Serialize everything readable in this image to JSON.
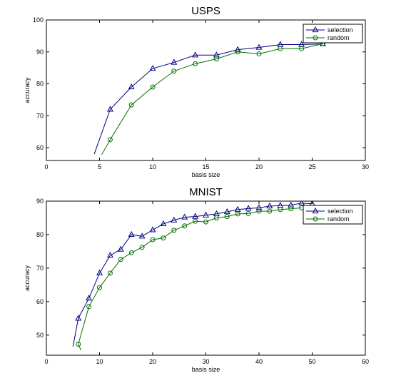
{
  "chart_data": [
    {
      "type": "line",
      "title": "USPS",
      "xlabel": "basis size",
      "ylabel": "accuracy",
      "xlim": [
        0,
        30
      ],
      "ylim": [
        56,
        100
      ],
      "xticks": [
        0,
        5,
        10,
        15,
        20,
        25,
        30
      ],
      "yticks": [
        60,
        70,
        80,
        90,
        100
      ],
      "grid": false,
      "legend_position": "top-right",
      "series": [
        {
          "name": "selection",
          "color": "#000080",
          "marker": "triangle",
          "line_start": {
            "x": 4.5,
            "y": 58
          },
          "x": [
            6,
            8,
            10,
            12,
            14,
            16,
            18,
            20,
            22,
            24,
            26
          ],
          "y": [
            72,
            79,
            84.8,
            86.7,
            89,
            89,
            90.7,
            91.4,
            92.3,
            92.3,
            92.5
          ]
        },
        {
          "name": "random",
          "color": "#007000",
          "marker": "circle",
          "line_start": {
            "x": 5.2,
            "y": 57.8
          },
          "x": [
            6,
            8,
            10,
            12,
            14,
            16,
            18,
            20,
            22,
            24,
            26
          ],
          "y": [
            62.5,
            73.4,
            79,
            84,
            86.3,
            87.8,
            90,
            89.4,
            91,
            91,
            92.6
          ]
        }
      ]
    },
    {
      "type": "line",
      "title": "MNIST",
      "xlabel": "basis size",
      "ylabel": "accuracy",
      "xlim": [
        0,
        60
      ],
      "ylim": [
        44,
        90
      ],
      "xticks": [
        0,
        10,
        20,
        30,
        40,
        50,
        60
      ],
      "yticks": [
        50,
        60,
        70,
        80,
        90
      ],
      "grid": false,
      "legend_position": "top-right",
      "series": [
        {
          "name": "selection",
          "color": "#000080",
          "marker": "triangle",
          "line_start": {
            "x": 5,
            "y": 46.5
          },
          "x": [
            6,
            8,
            10,
            12,
            14,
            16,
            18,
            20,
            22,
            24,
            26,
            28,
            30,
            32,
            34,
            36,
            38,
            40,
            42,
            44,
            46,
            48,
            50
          ],
          "y": [
            55,
            61,
            68.5,
            73.8,
            75.6,
            80,
            79.5,
            81.4,
            83.2,
            84.3,
            85.2,
            85.4,
            85.8,
            86.2,
            86.8,
            87.5,
            87.8,
            88,
            88.5,
            88.7,
            88.8,
            89.4,
            89.2
          ]
        },
        {
          "name": "random",
          "color": "#007000",
          "marker": "circle",
          "line_start": {
            "x": 6.5,
            "y": 45.5
          },
          "x": [
            6,
            8,
            10,
            12,
            14,
            16,
            18,
            20,
            22,
            24,
            26,
            28,
            30,
            32,
            34,
            36,
            38,
            40,
            42,
            44,
            46,
            48
          ],
          "y": [
            47.3,
            58.5,
            64.2,
            68.5,
            72.6,
            74.6,
            76.2,
            78.5,
            79,
            81.3,
            82.6,
            84,
            83.8,
            85,
            85.4,
            86.2,
            86.3,
            87,
            87,
            87.5,
            87.7,
            88
          ]
        }
      ]
    }
  ]
}
